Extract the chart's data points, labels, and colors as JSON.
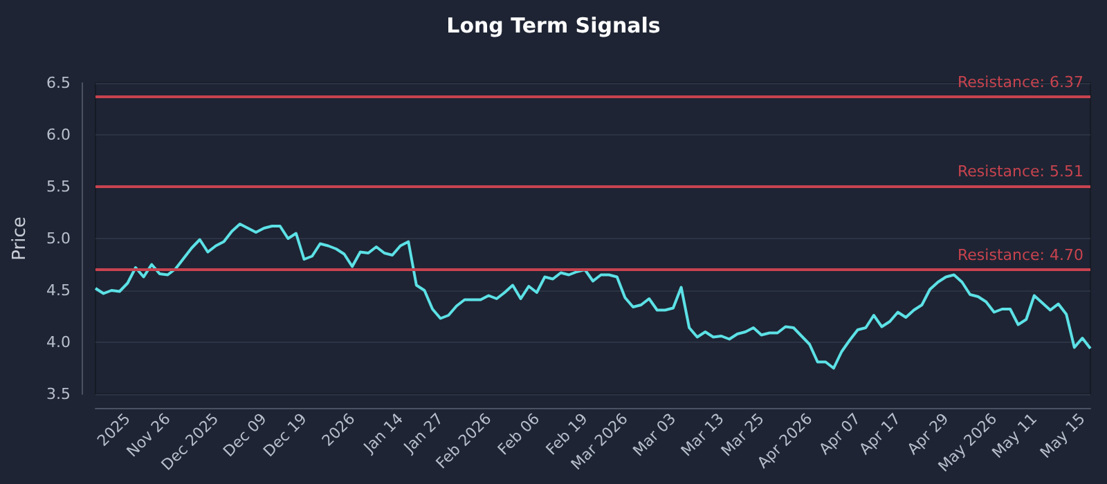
{
  "chart_data": {
    "type": "line",
    "title": "Long Term Signals",
    "ylabel": "Price",
    "categories": [
      null,
      null,
      null,
      null,
      "2025",
      null,
      null,
      null,
      null,
      "Nov 26",
      null,
      null,
      null,
      null,
      null,
      "Dec 2025",
      null,
      null,
      null,
      null,
      null,
      "Dec 09",
      null,
      null,
      null,
      null,
      "Dec 19",
      null,
      null,
      null,
      null,
      null,
      "2026",
      null,
      null,
      null,
      null,
      null,
      "Jan 14",
      null,
      null,
      null,
      null,
      "Jan 27",
      null,
      null,
      null,
      null,
      null,
      "Feb 2026",
      null,
      null,
      null,
      null,
      null,
      "Feb 06",
      null,
      null,
      null,
      null,
      null,
      "Feb 19",
      null,
      null,
      null,
      null,
      "Mar 2026",
      null,
      null,
      null,
      null,
      null,
      "Mar 03",
      null,
      null,
      null,
      null,
      null,
      "Mar 13",
      null,
      null,
      null,
      null,
      "Mar 25",
      null,
      null,
      null,
      null,
      null,
      "Apr 2026",
      null,
      null,
      null,
      null,
      null,
      "Apr 07",
      null,
      null,
      null,
      null,
      "Apr 17",
      null,
      null,
      null,
      null,
      null,
      "Apr 29",
      null,
      null,
      null,
      null,
      null,
      "May 2026",
      null,
      null,
      null,
      null,
      "May 11",
      null,
      null,
      null,
      null,
      null,
      "May 15",
      null
    ],
    "series": [
      {
        "color": "#5ce1e6",
        "values": [
          4.52,
          4.47,
          4.5,
          4.49,
          4.57,
          4.72,
          4.63,
          4.75,
          4.66,
          4.65,
          4.71,
          4.81,
          4.91,
          4.99,
          4.87,
          4.93,
          4.97,
          5.07,
          5.14,
          5.1,
          5.06,
          5.1,
          5.12,
          5.12,
          5.0,
          5.05,
          4.8,
          4.83,
          4.95,
          4.93,
          4.9,
          4.85,
          4.73,
          4.87,
          4.86,
          4.92,
          4.86,
          4.84,
          4.93,
          4.97,
          4.55,
          4.5,
          4.32,
          4.23,
          4.26,
          4.35,
          4.41,
          4.41,
          4.41,
          4.45,
          4.42,
          4.48,
          4.55,
          4.42,
          4.54,
          4.48,
          4.63,
          4.61,
          4.67,
          4.65,
          4.68,
          4.7,
          4.59,
          4.65,
          4.65,
          4.63,
          4.43,
          4.34,
          4.36,
          4.42,
          4.31,
          4.31,
          4.33,
          4.53,
          4.14,
          4.05,
          4.1,
          4.05,
          4.06,
          4.03,
          4.08,
          4.1,
          4.14,
          4.07,
          4.09,
          4.09,
          4.15,
          4.14,
          4.06,
          3.98,
          3.81,
          3.81,
          3.75,
          3.91,
          4.02,
          4.12,
          4.14,
          4.26,
          4.15,
          4.2,
          4.29,
          4.24,
          4.31,
          4.36,
          4.51,
          4.58,
          4.63,
          4.65,
          4.58,
          4.46,
          4.44,
          4.39,
          4.29,
          4.32,
          4.32,
          4.17,
          4.22,
          4.45,
          4.38,
          4.31,
          4.37,
          4.27,
          3.95,
          4.04,
          3.94
        ]
      }
    ],
    "ylim": [
      3.5,
      6.5
    ],
    "yticks": [
      3.5,
      {
        "value": 4,
        "label": "4.0"
      },
      4.5,
      {
        "value": 5,
        "label": "5.0"
      },
      5.5,
      {
        "value": 6,
        "label": "6.0"
      },
      6.5
    ],
    "grid": "y",
    "marker": "none",
    "line_style": "solid",
    "ref_lines": [
      {
        "axis": "y",
        "value": 6.37,
        "label": "Resistance: 6.37",
        "color": "#c8434f"
      },
      {
        "axis": "y",
        "value": 5.51,
        "label": "Resistance: 5.51",
        "color": "#c8434f"
      },
      {
        "axis": "y",
        "value": 4.7,
        "label": "Resistance: 4.70",
        "color": "#c8434f"
      }
    ]
  }
}
